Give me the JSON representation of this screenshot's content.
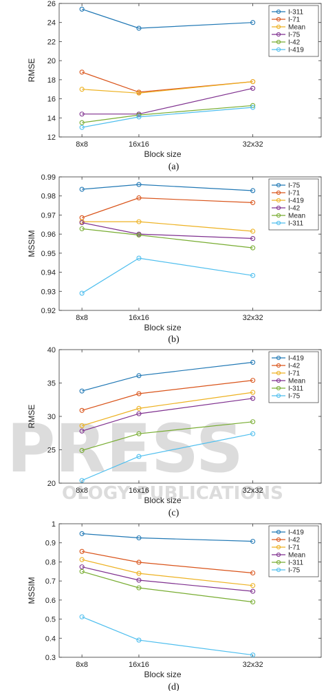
{
  "colors": {
    "c1": "#1f77b4",
    "c2": "#d95319",
    "c3": "#edb120",
    "c4": "#7e2f8e",
    "c5": "#77ac30",
    "c6": "#4dbeee"
  },
  "watermark": {
    "line1": "PRESS",
    "line2": "OLOGY PUBLICATIONS"
  },
  "chart_data": [
    {
      "type": "line",
      "caption": "(a)",
      "xlabel": "Block size",
      "ylabel": "RMSE",
      "categories": [
        "8x8",
        "16x16",
        "32x32"
      ],
      "x": [
        1,
        2,
        4
      ],
      "xlim": [
        0.6,
        5.2
      ],
      "ylim": [
        12,
        26
      ],
      "yticks": [
        12,
        14,
        16,
        18,
        20,
        22,
        24,
        26
      ],
      "legend_position": "top-right",
      "series": [
        {
          "name": "I-311",
          "color": "#1f77b4",
          "values": [
            25.4,
            23.4,
            24.0
          ]
        },
        {
          "name": "I-71",
          "color": "#d95319",
          "values": [
            18.8,
            16.7,
            17.8
          ]
        },
        {
          "name": "Mean",
          "color": "#edb120",
          "values": [
            17.0,
            16.6,
            17.8
          ]
        },
        {
          "name": "I-75",
          "color": "#7e2f8e",
          "values": [
            14.4,
            14.4,
            17.1
          ]
        },
        {
          "name": "I-42",
          "color": "#77ac30",
          "values": [
            13.5,
            14.3,
            15.3
          ]
        },
        {
          "name": "I-419",
          "color": "#4dbeee",
          "values": [
            13.0,
            14.1,
            15.1
          ]
        }
      ]
    },
    {
      "type": "line",
      "caption": "(b)",
      "xlabel": "Block size",
      "ylabel": "MSSIM",
      "categories": [
        "8x8",
        "16x16",
        "32x32"
      ],
      "x": [
        1,
        2,
        4
      ],
      "xlim": [
        0.6,
        5.2
      ],
      "ylim": [
        0.92,
        0.99
      ],
      "yticks": [
        0.92,
        0.93,
        0.94,
        0.95,
        0.96,
        0.97,
        0.98,
        0.99
      ],
      "legend_position": "top-right",
      "series": [
        {
          "name": "I-75",
          "color": "#1f77b4",
          "values": [
            0.9835,
            0.986,
            0.9828
          ]
        },
        {
          "name": "I-71",
          "color": "#d95319",
          "values": [
            0.9686,
            0.979,
            0.9765
          ]
        },
        {
          "name": "I-419",
          "color": "#edb120",
          "values": [
            0.9665,
            0.9665,
            0.9615
          ]
        },
        {
          "name": "I-42",
          "color": "#7e2f8e",
          "values": [
            0.966,
            0.96,
            0.9577
          ]
        },
        {
          "name": "Mean",
          "color": "#77ac30",
          "values": [
            0.9628,
            0.9595,
            0.9528
          ]
        },
        {
          "name": "I-311",
          "color": "#4dbeee",
          "values": [
            0.929,
            0.9474,
            0.9383
          ]
        }
      ]
    },
    {
      "type": "line",
      "caption": "(c)",
      "xlabel": "Block size",
      "ylabel": "RMSE",
      "categories": [
        "8x8",
        "16x16",
        "32x32"
      ],
      "x": [
        1,
        2,
        4
      ],
      "xlim": [
        0.6,
        5.2
      ],
      "ylim": [
        20,
        40
      ],
      "yticks": [
        20,
        25,
        30,
        35,
        40
      ],
      "legend_position": "top-right",
      "series": [
        {
          "name": "I-419",
          "color": "#1f77b4",
          "values": [
            33.8,
            36.1,
            38.1
          ]
        },
        {
          "name": "I-42",
          "color": "#d95319",
          "values": [
            30.9,
            33.4,
            35.4
          ]
        },
        {
          "name": "I-71",
          "color": "#edb120",
          "values": [
            28.6,
            31.2,
            33.6
          ]
        },
        {
          "name": "Mean",
          "color": "#7e2f8e",
          "values": [
            27.8,
            30.4,
            32.7
          ]
        },
        {
          "name": "I-311",
          "color": "#77ac30",
          "values": [
            24.9,
            27.4,
            29.2
          ]
        },
        {
          "name": "I-75",
          "color": "#4dbeee",
          "values": [
            20.4,
            24.0,
            27.4
          ]
        }
      ]
    },
    {
      "type": "line",
      "caption": "(d)",
      "xlabel": "Block size",
      "ylabel": "MSSIM",
      "categories": [
        "8x8",
        "16x16",
        "32x32"
      ],
      "x": [
        1,
        2,
        4
      ],
      "xlim": [
        0.6,
        5.2
      ],
      "ylim": [
        0.3,
        1.0
      ],
      "yticks": [
        0.3,
        0.4,
        0.5,
        0.6,
        0.7,
        0.8,
        0.9,
        1
      ],
      "legend_position": "top-right",
      "series": [
        {
          "name": "I-419",
          "color": "#1f77b4",
          "values": [
            0.948,
            0.926,
            0.908
          ]
        },
        {
          "name": "I-42",
          "color": "#d95319",
          "values": [
            0.855,
            0.798,
            0.742
          ]
        },
        {
          "name": "I-71",
          "color": "#edb120",
          "values": [
            0.812,
            0.74,
            0.676
          ]
        },
        {
          "name": "Mean",
          "color": "#7e2f8e",
          "values": [
            0.774,
            0.704,
            0.646
          ]
        },
        {
          "name": "I-311",
          "color": "#77ac30",
          "values": [
            0.75,
            0.664,
            0.59
          ]
        },
        {
          "name": "I-75",
          "color": "#4dbeee",
          "values": [
            0.512,
            0.39,
            0.312
          ]
        }
      ]
    }
  ]
}
